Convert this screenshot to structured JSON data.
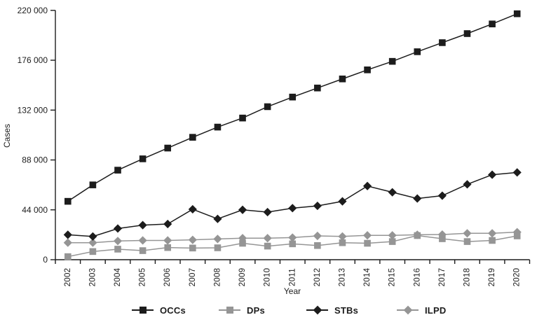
{
  "chart_data": {
    "type": "line",
    "title": "",
    "xlabel": "Year",
    "ylabel": "Cases",
    "ylim": [
      0,
      220000
    ],
    "grid": false,
    "legend_position": "bottom",
    "y_tick_values": [
      0,
      44000,
      88000,
      132000,
      176000,
      220000
    ],
    "y_tick_labels": [
      "0",
      "44 000",
      "88 000",
      "132 000",
      "176 000",
      "220 000"
    ],
    "categories": [
      "2002",
      "2003",
      "2004",
      "2005",
      "2006",
      "2007",
      "2008",
      "2009",
      "2010",
      "2011",
      "2012",
      "2013",
      "2014",
      "2015",
      "2016",
      "2017",
      "2018",
      "2019",
      "2020"
    ],
    "series": [
      {
        "name": "OCCs",
        "marker": "square",
        "color": "#1c1c1c",
        "values": [
          51500,
          66000,
          79000,
          89000,
          98500,
          108000,
          117000,
          125000,
          135000,
          143500,
          151500,
          159500,
          167500,
          175000,
          183500,
          191500,
          199500,
          208000,
          217000
        ]
      },
      {
        "name": "DPs",
        "marker": "square",
        "color": "#959595",
        "values": [
          2700,
          7200,
          9300,
          8000,
          10700,
          10300,
          10500,
          14500,
          12000,
          14000,
          12500,
          15000,
          14500,
          16000,
          21300,
          18500,
          16000,
          17000,
          21000
        ]
      },
      {
        "name": "STBs",
        "marker": "diamond",
        "color": "#1c1c1c",
        "values": [
          22000,
          20500,
          27500,
          30500,
          31500,
          44500,
          36000,
          44000,
          42000,
          45500,
          47500,
          51500,
          65000,
          59500,
          54000,
          56500,
          66500,
          75000,
          77000
        ]
      },
      {
        "name": "ILPD",
        "marker": "diamond",
        "color": "#959595",
        "values": [
          15000,
          15000,
          16500,
          17000,
          17000,
          17500,
          18300,
          19000,
          19000,
          19500,
          21000,
          20500,
          21500,
          21500,
          22000,
          22200,
          23300,
          23300,
          24300
        ]
      }
    ]
  }
}
